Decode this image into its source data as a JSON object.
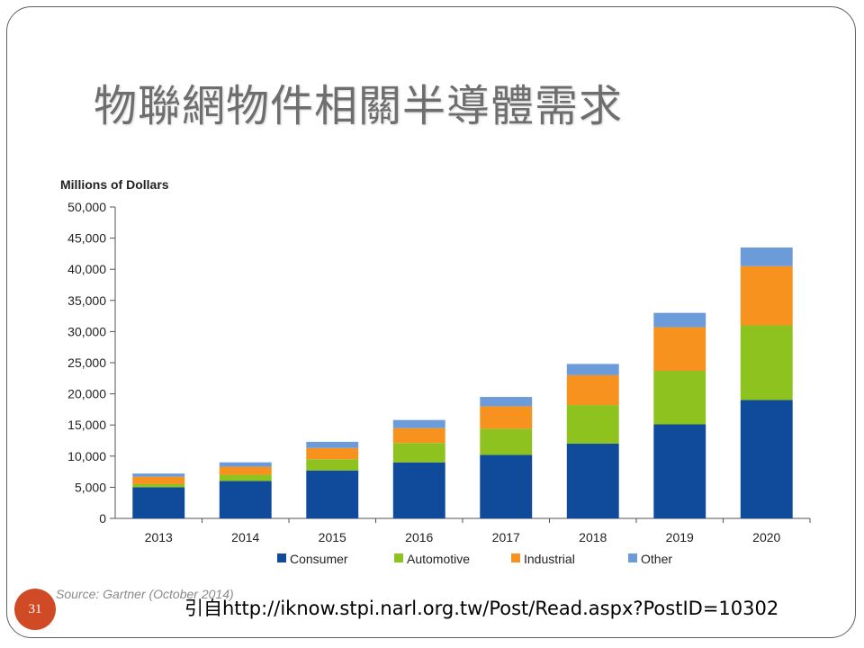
{
  "slide": {
    "title": "物聯網物件相關半導體需求",
    "source": "Source: Gartner (October 2014)",
    "citation": "引自http://iknow.stpi.narl.org.tw/Post/Read.aspx?PostID=10302",
    "page_number": "31"
  },
  "colors": {
    "consumer": "#0f4a9b",
    "automotive": "#8ec31f",
    "industrial": "#f7921e",
    "other": "#6b9bd8",
    "badge": "#d04a25"
  },
  "chart_data": {
    "type": "bar",
    "stacked": true,
    "ylabel": "Millions of Dollars",
    "xlabel": "",
    "categories": [
      "2013",
      "2014",
      "2015",
      "2016",
      "2017",
      "2018",
      "2019",
      "2020"
    ],
    "ylim": [
      0,
      50000
    ],
    "y_ticks": [
      "0",
      "5,000",
      "10,000",
      "15,000",
      "20,000",
      "25,000",
      "30,000",
      "35,000",
      "40,000",
      "45,000",
      "50,000"
    ],
    "grid": false,
    "legend_position": "bottom",
    "series": [
      {
        "name": "Consumer",
        "color": "#0f4a9b",
        "values": [
          5000,
          6000,
          7700,
          9000,
          10200,
          12000,
          15100,
          19000
        ]
      },
      {
        "name": "Automotive",
        "color": "#8ec31f",
        "values": [
          500,
          1000,
          1800,
          3100,
          4200,
          6200,
          8600,
          12000
        ]
      },
      {
        "name": "Industrial",
        "color": "#f7921e",
        "values": [
          1200,
          1300,
          1800,
          2400,
          3600,
          4800,
          7000,
          9500
        ]
      },
      {
        "name": "Other",
        "color": "#6b9bd8",
        "values": [
          500,
          700,
          1000,
          1300,
          1500,
          1800,
          2300,
          3000
        ]
      }
    ]
  }
}
